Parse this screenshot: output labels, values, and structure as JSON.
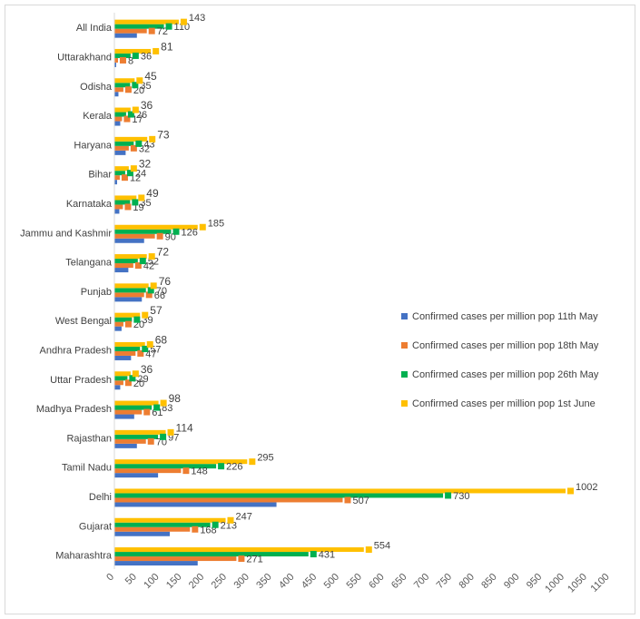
{
  "chart_data": {
    "type": "bar",
    "orientation": "horizontal",
    "title": "",
    "xlabel": "",
    "ylabel": "",
    "xlim": [
      0,
      1100
    ],
    "xticks": [
      "0",
      "50",
      "100",
      "150",
      "200",
      "250",
      "300",
      "350",
      "400",
      "450",
      "500",
      "550",
      "600",
      "650",
      "700",
      "750",
      "800",
      "850",
      "900",
      "950",
      "1000",
      "1050",
      "1100"
    ],
    "categories": [
      "All India",
      "Uttarakhand",
      "Odisha",
      "Kerala",
      "Haryana",
      "Bihar",
      "Karnataka",
      "Jammu and Kashmir",
      "Telangana",
      "Punjab",
      "West Bengal",
      "Andhra Pradesh",
      "Uttar Pradesh",
      "Madhya Pradesh",
      "Rajasthan",
      "Tamil Nadu",
      "Delhi",
      "Gujarat",
      "Maharashtra"
    ],
    "series": [
      {
        "name": "Confirmed cases per million pop  11th May",
        "color": "#4472c4",
        "values": [
          50,
          4,
          9,
          13,
          25,
          6,
          11,
          66,
          31,
          61,
          16,
          37,
          13,
          44,
          50,
          97,
          360,
          123,
          185
        ]
      },
      {
        "name": "Confirmed cases per million pop 18th  May",
        "color": "#ed7d31",
        "values": [
          72,
          8,
          20,
          17,
          32,
          12,
          19,
          90,
          42,
          66,
          20,
          47,
          20,
          61,
          70,
          148,
          507,
          168,
          271
        ]
      },
      {
        "name": "Confirmed cases per million pop 26th  May",
        "color": "#00b050",
        "values": [
          110,
          36,
          35,
          26,
          43,
          24,
          35,
          126,
          52,
          70,
          39,
          57,
          29,
          83,
          97,
          226,
          730,
          213,
          431
        ]
      },
      {
        "name": "Confirmed cases per million pop 1st June",
        "color": "#ffc000",
        "values": [
          143,
          81,
          45,
          36,
          73,
          32,
          49,
          185,
          72,
          76,
          57,
          68,
          36,
          98,
          114,
          295,
          1002,
          247,
          554
        ]
      }
    ],
    "legend_position": "right"
  }
}
